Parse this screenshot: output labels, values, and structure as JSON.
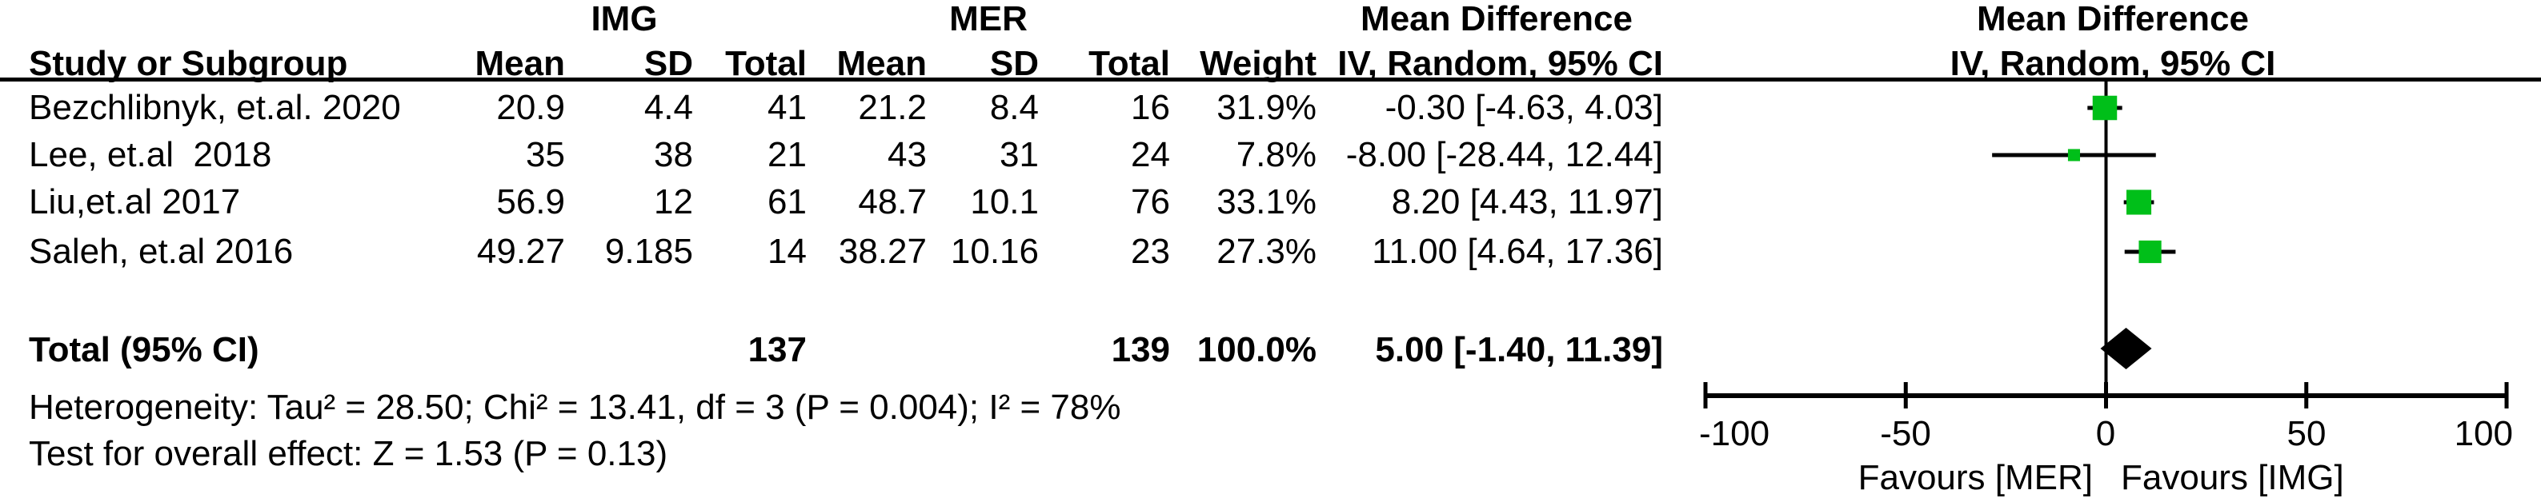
{
  "header": {
    "group1": "IMG",
    "group2": "MER",
    "col_study": "Study or Subgroup",
    "col_mean": "Mean",
    "col_sd": "SD",
    "col_total": "Total",
    "col_weight": "Weight",
    "md_title": "Mean Difference",
    "md_method": "IV, Random, 95% CI",
    "plot_md_title": "Mean Difference",
    "plot_md_method": "IV, Random, 95% CI"
  },
  "rows": [
    {
      "study": "Bezchlibnyk, et.al. 2020",
      "mean1": "20.9",
      "sd1": "4.4",
      "total1": "41",
      "mean2": "21.2",
      "sd2": "8.4",
      "total2": "16",
      "weight": "31.9%",
      "md_ci": "-0.30 [-4.63, 4.03]"
    },
    {
      "study": "Lee, et.al  2018",
      "mean1": "35",
      "sd1": "38",
      "total1": "21",
      "mean2": "43",
      "sd2": "31",
      "total2": "24",
      "weight": "7.8%",
      "md_ci": "-8.00 [-28.44, 12.44]"
    },
    {
      "study": "Liu,et.al 2017",
      "mean1": "56.9",
      "sd1": "12",
      "total1": "61",
      "mean2": "48.7",
      "sd2": "10.1",
      "total2": "76",
      "weight": "33.1%",
      "md_ci": "8.20 [4.43, 11.97]"
    },
    {
      "study": "Saleh, et.al 2016",
      "mean1": "49.27",
      "sd1": "9.185",
      "total1": "14",
      "mean2": "38.27",
      "sd2": "10.16",
      "total2": "23",
      "weight": "27.3%",
      "md_ci": "11.00 [4.64, 17.36]"
    }
  ],
  "total_row": {
    "label": "Total (95% CI)",
    "total1": "137",
    "total2": "139",
    "weight": "100.0%",
    "md_ci": "5.00 [-1.40, 11.39]"
  },
  "footer": {
    "heterogeneity": "Heterogeneity: Tau² = 28.50; Chi² = 13.41, df = 3 (P = 0.004); I² = 78%",
    "overall_effect": "Test for overall effect: Z = 1.53 (P = 0.13)"
  },
  "axis_labels": {
    "ticks": [
      "-100",
      "-50",
      "0",
      "50",
      "100"
    ],
    "favours_left": "Favours [MER]",
    "favours_right": "Favours [IMG]"
  },
  "colors": {
    "marker_green": "#00bf19",
    "line_black": "#000000",
    "diamond_black": "#000000"
  },
  "chart_data": {
    "type": "forest",
    "effect_measure": "Mean Difference",
    "model": "IV, Random, 95% CI",
    "x_axis": {
      "min": -100,
      "max": 100,
      "ticks": [
        -100,
        -50,
        0,
        50,
        100
      ],
      "label_left": "Favours [MER]",
      "label_right": "Favours [IMG]"
    },
    "studies": [
      {
        "name": "Bezchlibnyk, et.al. 2020",
        "md": -0.3,
        "ci_low": -4.63,
        "ci_high": 4.03,
        "weight_pct": 31.9
      },
      {
        "name": "Lee, et.al 2018",
        "md": -8.0,
        "ci_low": -28.44,
        "ci_high": 12.44,
        "weight_pct": 7.8
      },
      {
        "name": "Liu,et.al 2017",
        "md": 8.2,
        "ci_low": 4.43,
        "ci_high": 11.97,
        "weight_pct": 33.1
      },
      {
        "name": "Saleh, et.al 2016",
        "md": 11.0,
        "ci_low": 4.64,
        "ci_high": 17.36,
        "weight_pct": 27.3
      }
    ],
    "total": {
      "label": "Total (95% CI)",
      "md": 5.0,
      "ci_low": -1.4,
      "ci_high": 11.39,
      "weight_pct": 100.0
    }
  }
}
